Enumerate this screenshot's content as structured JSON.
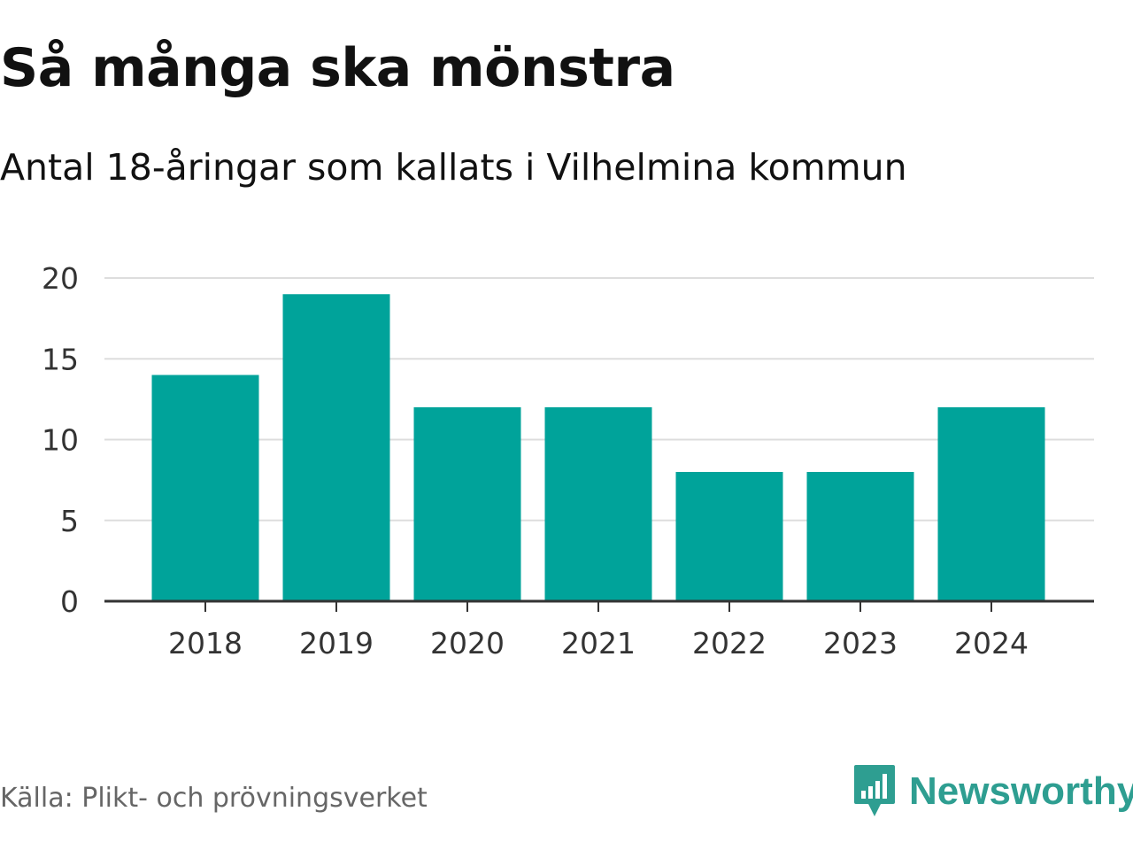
{
  "chart_data": {
    "type": "bar",
    "title": "Så många ska mönstra",
    "subtitle": "Antal 18-åringar som kallats i Vilhelmina kommun",
    "categories": [
      "2018",
      "2019",
      "2020",
      "2021",
      "2022",
      "2023",
      "2024"
    ],
    "values": [
      14,
      19,
      12,
      12,
      8,
      8,
      12
    ],
    "yticks": [
      0,
      5,
      10,
      15,
      20
    ],
    "ylim": [
      0,
      20
    ],
    "xlabel": "",
    "ylabel": "",
    "grid": true,
    "bar_color": "#00a39a"
  },
  "source": "Källa: Plikt- och prövningsverket",
  "brand": {
    "name": "Newsworthy",
    "icon": "newsworthy-logo-icon",
    "color": "#2e9e91"
  }
}
